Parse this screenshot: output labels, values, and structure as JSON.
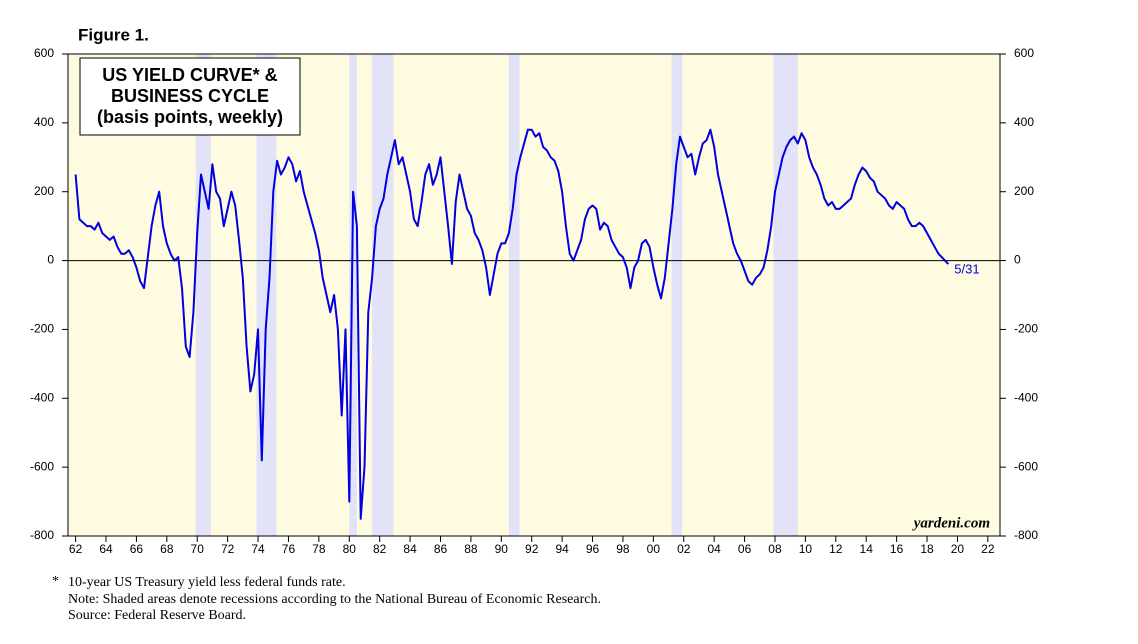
{
  "chart_data": {
    "type": "line",
    "figure_label": "Figure 1.",
    "title": [
      "US YIELD CURVE* &",
      "BUSINESS CYCLE",
      "(basis points, weekly)"
    ],
    "annotation": "5/31",
    "watermark": "yardeni.com",
    "footnotes": [
      "10-year US Treasury yield less federal funds rate.",
      "Note: Shaded areas denote recessions according to the National Bureau of Economic Research.",
      "Source: Federal Reserve Board."
    ],
    "footnote_marker": "*",
    "recessions": [
      [
        1969.9,
        1970.9
      ],
      [
        1973.9,
        1975.2
      ],
      [
        1980.0,
        1980.5
      ],
      [
        1981.5,
        1982.9
      ],
      [
        1990.5,
        1991.2
      ],
      [
        2001.2,
        2001.9
      ],
      [
        2007.9,
        2009.5
      ]
    ],
    "recession_color": "#e2e2f8",
    "background": "#fffbe0",
    "xlim": [
      1961.5,
      2022.8
    ],
    "ylim": [
      -800,
      600
    ],
    "xticks": [
      {
        "value": 1962,
        "label": "62"
      },
      {
        "value": 1964,
        "label": "64"
      },
      {
        "value": 1966,
        "label": "66"
      },
      {
        "value": 1968,
        "label": "68"
      },
      {
        "value": 1970,
        "label": "70"
      },
      {
        "value": 1972,
        "label": "72"
      },
      {
        "value": 1974,
        "label": "74"
      },
      {
        "value": 1976,
        "label": "76"
      },
      {
        "value": 1978,
        "label": "78"
      },
      {
        "value": 1980,
        "label": "80"
      },
      {
        "value": 1982,
        "label": "82"
      },
      {
        "value": 1984,
        "label": "84"
      },
      {
        "value": 1986,
        "label": "86"
      },
      {
        "value": 1988,
        "label": "88"
      },
      {
        "value": 1990,
        "label": "90"
      },
      {
        "value": 1992,
        "label": "92"
      },
      {
        "value": 1994,
        "label": "94"
      },
      {
        "value": 1996,
        "label": "96"
      },
      {
        "value": 1998,
        "label": "98"
      },
      {
        "value": 2000,
        "label": "00"
      },
      {
        "value": 2002,
        "label": "02"
      },
      {
        "value": 2004,
        "label": "04"
      },
      {
        "value": 2006,
        "label": "06"
      },
      {
        "value": 2008,
        "label": "08"
      },
      {
        "value": 2010,
        "label": "10"
      },
      {
        "value": 2012,
        "label": "12"
      },
      {
        "value": 2014,
        "label": "14"
      },
      {
        "value": 2016,
        "label": "16"
      },
      {
        "value": 2018,
        "label": "18"
      },
      {
        "value": 2020,
        "label": "20"
      },
      {
        "value": 2022,
        "label": "22"
      }
    ],
    "yticks": [
      600,
      400,
      200,
      0,
      -200,
      -400,
      -600,
      -800
    ],
    "series": [
      {
        "color": "#0000e0",
        "x": [
          1962,
          1962.25,
          1962.5,
          1962.75,
          1963,
          1963.25,
          1963.5,
          1963.75,
          1964,
          1964.25,
          1964.5,
          1964.75,
          1965,
          1965.25,
          1965.5,
          1965.75,
          1966,
          1966.25,
          1966.5,
          1966.75,
          1967,
          1967.25,
          1967.5,
          1967.75,
          1968,
          1968.25,
          1968.5,
          1968.75,
          1969,
          1969.25,
          1969.5,
          1969.75,
          1970,
          1970.25,
          1970.5,
          1970.75,
          1971,
          1971.25,
          1971.5,
          1971.75,
          1972,
          1972.25,
          1972.5,
          1972.75,
          1973,
          1973.25,
          1973.5,
          1973.75,
          1974,
          1974.25,
          1974.5,
          1974.75,
          1975,
          1975.25,
          1975.5,
          1975.75,
          1976,
          1976.25,
          1976.5,
          1976.75,
          1977,
          1977.25,
          1977.5,
          1977.75,
          1978,
          1978.25,
          1978.5,
          1978.75,
          1979,
          1979.25,
          1979.5,
          1979.75,
          1980,
          1980.25,
          1980.5,
          1980.75,
          1981,
          1981.25,
          1981.5,
          1981.75,
          1982,
          1982.25,
          1982.5,
          1982.75,
          1983,
          1983.25,
          1983.5,
          1983.75,
          1984,
          1984.25,
          1984.5,
          1984.75,
          1985,
          1985.25,
          1985.5,
          1985.75,
          1986,
          1986.25,
          1986.5,
          1986.75,
          1987,
          1987.25,
          1987.5,
          1987.75,
          1988,
          1988.25,
          1988.5,
          1988.75,
          1989,
          1989.25,
          1989.5,
          1989.75,
          1990,
          1990.25,
          1990.5,
          1990.75,
          1991,
          1991.25,
          1991.5,
          1991.75,
          1992,
          1992.25,
          1992.5,
          1992.75,
          1993,
          1993.25,
          1993.5,
          1993.75,
          1994,
          1994.25,
          1994.5,
          1994.75,
          1995,
          1995.25,
          1995.5,
          1995.75,
          1996,
          1996.25,
          1996.5,
          1996.75,
          1997,
          1997.25,
          1997.5,
          1997.75,
          1998,
          1998.25,
          1998.5,
          1998.75,
          1999,
          1999.25,
          1999.5,
          1999.75,
          2000,
          2000.25,
          2000.5,
          2000.75,
          2001,
          2001.25,
          2001.5,
          2001.75,
          2002,
          2002.25,
          2002.5,
          2002.75,
          2003,
          2003.25,
          2003.5,
          2003.75,
          2004,
          2004.25,
          2004.5,
          2004.75,
          2005,
          2005.25,
          2005.5,
          2005.75,
          2006,
          2006.25,
          2006.5,
          2006.75,
          2007,
          2007.25,
          2007.5,
          2007.75,
          2008,
          2008.25,
          2008.5,
          2008.75,
          2009,
          2009.25,
          2009.5,
          2009.75,
          2010,
          2010.25,
          2010.5,
          2010.75,
          2011,
          2011.25,
          2011.5,
          2011.75,
          2012,
          2012.25,
          2012.5,
          2012.75,
          2013,
          2013.25,
          2013.5,
          2013.75,
          2014,
          2014.25,
          2014.5,
          2014.75,
          2015,
          2015.25,
          2015.5,
          2015.75,
          2016,
          2016.25,
          2016.5,
          2016.75,
          2017,
          2017.25,
          2017.5,
          2017.75,
          2018,
          2018.25,
          2018.5,
          2018.75,
          2019.4
        ],
        "values": [
          250,
          120,
          110,
          100,
          100,
          90,
          110,
          80,
          70,
          60,
          70,
          40,
          20,
          20,
          30,
          10,
          -20,
          -60,
          -80,
          10,
          100,
          160,
          200,
          100,
          50,
          20,
          0,
          10,
          -80,
          -250,
          -280,
          -150,
          80,
          250,
          200,
          150,
          280,
          200,
          180,
          100,
          150,
          200,
          160,
          60,
          -50,
          -250,
          -380,
          -330,
          -200,
          -580,
          -200,
          -50,
          200,
          290,
          250,
          270,
          300,
          280,
          230,
          260,
          200,
          160,
          120,
          80,
          30,
          -50,
          -100,
          -150,
          -100,
          -200,
          -450,
          -200,
          -700,
          200,
          100,
          -750,
          -600,
          -150,
          -50,
          100,
          150,
          180,
          250,
          300,
          350,
          280,
          300,
          250,
          200,
          120,
          100,
          170,
          250,
          280,
          220,
          250,
          300,
          200,
          100,
          -10,
          170,
          250,
          200,
          150,
          130,
          80,
          60,
          30,
          -20,
          -100,
          -40,
          20,
          50,
          50,
          80,
          150,
          250,
          300,
          340,
          380,
          380,
          360,
          370,
          330,
          320,
          300,
          290,
          260,
          200,
          100,
          20,
          0,
          30,
          60,
          120,
          150,
          160,
          150,
          90,
          110,
          100,
          60,
          40,
          20,
          10,
          -20,
          -80,
          -20,
          0,
          50,
          60,
          40,
          -20,
          -70,
          -110,
          -50,
          50,
          150,
          280,
          360,
          330,
          300,
          310,
          250,
          300,
          340,
          350,
          380,
          330,
          250,
          200,
          150,
          100,
          50,
          20,
          0,
          -30,
          -60,
          -70,
          -50,
          -40,
          -20,
          30,
          100,
          200,
          250,
          300,
          330,
          350,
          360,
          340,
          370,
          350,
          300,
          270,
          250,
          220,
          180,
          160,
          170,
          150,
          150,
          160,
          170,
          180,
          220,
          250,
          270,
          260,
          240,
          230,
          200,
          190,
          180,
          160,
          150,
          170,
          160,
          150,
          120,
          100,
          100,
          110,
          100,
          80,
          60,
          40,
          20,
          -10
        ]
      }
    ]
  }
}
